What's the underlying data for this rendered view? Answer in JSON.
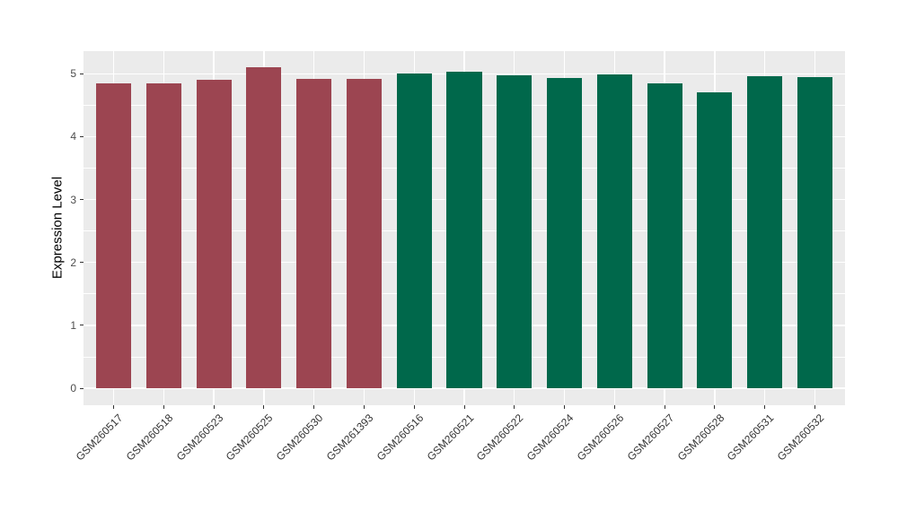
{
  "chart_data": {
    "type": "bar",
    "title": "",
    "xlabel": "",
    "ylabel": "Expression Level",
    "categories": [
      "GSM260517",
      "GSM260518",
      "GSM260523",
      "GSM260525",
      "GSM260530",
      "GSM261393",
      "GSM260516",
      "GSM260521",
      "GSM260522",
      "GSM260524",
      "GSM260526",
      "GSM260527",
      "GSM260528",
      "GSM260531",
      "GSM260532"
    ],
    "values": [
      4.85,
      4.85,
      4.91,
      5.1,
      4.92,
      4.92,
      5.01,
      5.03,
      4.97,
      4.93,
      4.99,
      4.84,
      4.7,
      4.96,
      4.94
    ],
    "bar_colors": [
      "#9C4551",
      "#9C4551",
      "#9C4551",
      "#9C4551",
      "#9C4551",
      "#9C4551",
      "#00684B",
      "#00684B",
      "#00684B",
      "#00684B",
      "#00684B",
      "#00684B",
      "#00684B",
      "#00684B",
      "#00684B"
    ],
    "group_colors": {
      "maroon_group": "#9C4551",
      "green_group": "#00684B"
    },
    "yticks": [
      0,
      1,
      2,
      3,
      4,
      5
    ],
    "ylim": [
      -0.27,
      5.36
    ],
    "grid": "on",
    "legend": "none",
    "style": {
      "background": "#FFFFFF",
      "panel_background": "#EBEBEB",
      "grid_color": "#FFFFFF",
      "tick_color": "#333333",
      "axis_text_color": "#4D4D4D",
      "axis_title_color": "#000000"
    }
  }
}
